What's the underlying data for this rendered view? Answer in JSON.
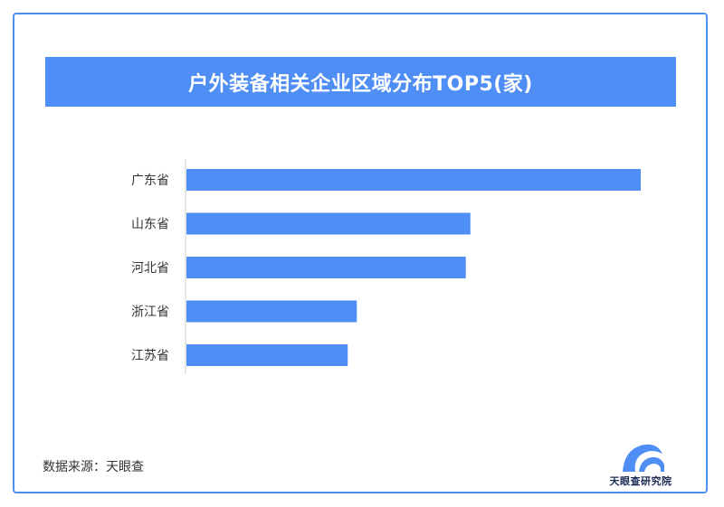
{
  "colors": {
    "accent": "#4f8ef5",
    "axis": "#cfcfcf",
    "text": "#333333",
    "logo_dark": "#1a2a55"
  },
  "title": "户外装备相关企业区域分布TOP5(家)",
  "source": "数据来源：天眼查",
  "logo": {
    "text": "天眼查研究院",
    "icon": "tianyancha-logo-icon"
  },
  "chart_data": {
    "type": "bar",
    "orientation": "horizontal",
    "title": "户外装备相关企业区域分布TOP5(家)",
    "categories": [
      "广东省",
      "山东省",
      "河北省",
      "浙江省",
      "江苏省"
    ],
    "values": [
      100,
      62.5,
      61.5,
      37.5,
      35.5
    ],
    "xlim": [
      0,
      100
    ],
    "grid": false,
    "legend": "none"
  }
}
